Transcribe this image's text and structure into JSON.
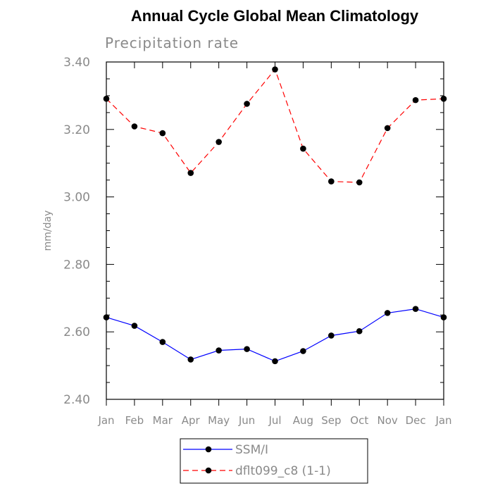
{
  "chart_data": {
    "type": "line",
    "title": "Annual Cycle Global Mean Climatology",
    "subtitle": "Precipitation rate",
    "xlabel": "",
    "ylabel": "mm/day",
    "categories": [
      "Jan",
      "Feb",
      "Mar",
      "Apr",
      "May",
      "Jun",
      "Jul",
      "Aug",
      "Sep",
      "Oct",
      "Nov",
      "Dec",
      "Jan"
    ],
    "ylim": [
      2.4,
      3.4
    ],
    "yticks": [
      2.4,
      2.6,
      2.8,
      3.0,
      3.2,
      3.4
    ],
    "ytick_labels": [
      "2.40",
      "2.60",
      "2.80",
      "3.00",
      "3.20",
      "3.40"
    ],
    "y_minor_step": 0.05,
    "grid": false,
    "legend_position": "bottom-center",
    "series": [
      {
        "name": "SSM/I",
        "color": "#0000ff",
        "dash": "solid",
        "marker": "filled-circle",
        "values": [
          2.643,
          2.618,
          2.57,
          2.518,
          2.545,
          2.549,
          2.513,
          2.543,
          2.589,
          2.602,
          2.656,
          2.668,
          2.643
        ]
      },
      {
        "name": "dflt099_c8 (1-1)",
        "color": "#ff0000",
        "dash": "dashed",
        "marker": "filled-circle",
        "values": [
          3.291,
          3.209,
          3.189,
          3.071,
          3.163,
          3.276,
          3.378,
          3.143,
          3.046,
          3.043,
          3.204,
          3.287,
          3.291
        ]
      }
    ]
  }
}
